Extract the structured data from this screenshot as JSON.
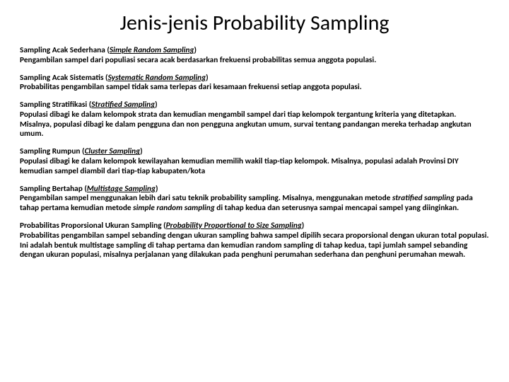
{
  "title": "Jenis-jenis Probability Sampling",
  "sections": [
    {
      "heading": "Sampling Acak Sederhana (",
      "italic": "Simple Random Sampling",
      "close": ")",
      "body": "Pengambilan sampel dari populiasi secara acak berdasarkan frekuensi probabilitas semua anggota populasi."
    },
    {
      "heading": "Sampling Acak Sistematis (",
      "italic": "Systematic Random Sampling",
      "close": ")",
      "body": "Probabilitas pengambilan sampel tidak sama terlepas dari kesamaan frekuensi setiap anggota populasi."
    },
    {
      "heading": "Sampling Stratifikasi (",
      "italic": "Stratified Sampling",
      "close": ")",
      "body": "Populasi dibagi ke dalam kelompok strata dan kemudian mengambil sampel dari tiap kelompok tergantung kriteria yang ditetapkan. Misalnya, populasi dibagi ke dalam pengguna dan non pengguna angkutan umum, survai tentang pandangan mereka terhadap angkutan umum."
    },
    {
      "heading": "Sampling Rumpun (",
      "italic": "Cluster Sampling",
      "close": ")",
      "body": "Populasi dibagi ke dalam kelompok kewilayahan kemudian memilih wakil tiap-tiap kelompok. Misalnya, populasi adalah Provinsi DIY kemudian sampel diambil dari tiap-tiap kabupaten/kota"
    },
    {
      "heading": "Sampling Bertahap (",
      "italic": "Multistage Sampling",
      "close": ")",
      "body_pre": "Pengambilan sampel menggunakan lebih dari satu teknik probability sampling. Misalnya, menggunakan metode ",
      "body_i1": "stratified sampling",
      "body_mid": " pada tahap pertama kemudian metode ",
      "body_i2": "simple random sampling",
      "body_post": " di tahap kedua dan seterusnya sampai mencapai sampel yang diinginkan."
    },
    {
      "heading": "Probabilitas Proporsional Ukuran Sampling (",
      "italic": "Probability Proportional to Size Sampling",
      "close": ")",
      "body": "Probabilitas pengambilan sampel sebanding dengan ukuran sampling bahwa sampel dipilih secara proporsional dengan ukuran total populasi. Ini adalah bentuk multistage sampling di tahap pertama dan kemudian random sampling di tahap kedua, tapi jumlah sampel sebanding dengan ukuran populasi, misalnya perjalanan yang dilakukan pada penghuni perumahan sederhana dan penghuni perumahan mewah."
    }
  ]
}
